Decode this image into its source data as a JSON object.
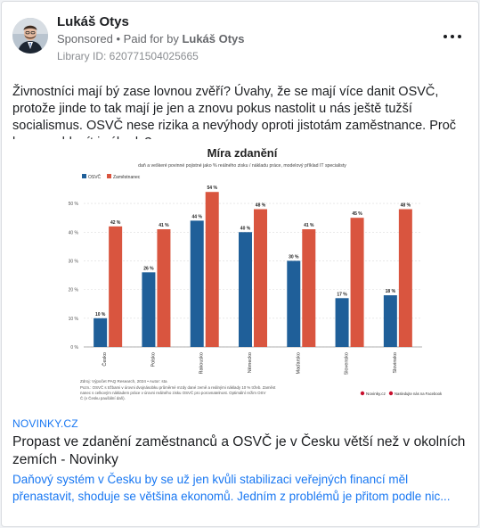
{
  "post": {
    "author_name": "Lukáš Otys",
    "sponsored_label": "Sponsored",
    "separator": " • ",
    "paid_for_prefix": "Paid for by ",
    "paid_for_name": "Lukáš Otys",
    "library_id": "Library ID: 620771504025665",
    "more_icon": "more-horizontal-icon",
    "text": "Živnostníci mají bý zase lovnou zvěří? Úvahy, že se mají více danit OSVČ, protože jinde to tak mají je jen a znovu pokus nastolit u nás ještě tužší socialismus. OSVČ nese rizika a nevýhody oproti jistotám zaměstnance. Proč by nemohl mít i výhody?"
  },
  "link_preview": {
    "domain": "NOVINKY.CZ",
    "headline": "Propast ve zdanění zaměstnanců a OSVČ je v Česku větší než v okolních zemích - Novinky",
    "description_line1": "Daňový systém v Česku by se už jen kvůli stabilizaci veřejných financí měl",
    "description_line2": "přenastavit, shoduje se většina ekonomů. Jedním z problémů je přitom podle nic..."
  },
  "colors": {
    "osvc": "#1f5f99",
    "employee": "#d9553f",
    "link": "#1877f2"
  },
  "chart_data": {
    "type": "bar",
    "title": "Míra zdanění",
    "subtitle": "daň a veškeré povinné pojistné jako % reálného zisku / nákladu práce, modelový příklad IT specialisty",
    "categories": [
      "Česko",
      "Polsko",
      "Rakousko",
      "Německo",
      "Maďarsko",
      "Slovensko",
      "Slovinsko"
    ],
    "series": [
      {
        "name": "OSVČ",
        "values": [
          10,
          26,
          44,
          40,
          30,
          17,
          18
        ]
      },
      {
        "name": "Zaměstnanec",
        "values": [
          42,
          41,
          54,
          48,
          41,
          45,
          48
        ]
      }
    ],
    "value_labels": [
      [
        "10 %",
        "26 %",
        "44 %",
        "40 %",
        "30 %",
        "17 %",
        "18 %"
      ],
      [
        "42 %",
        "41 %",
        "54 %",
        "48 %",
        "41 %",
        "45 %",
        "48 %"
      ]
    ],
    "y_ticks": [
      0,
      10,
      20,
      30,
      40,
      50
    ],
    "y_tick_labels": [
      "0 %",
      "10 %",
      "20 %",
      "30 %",
      "40 %",
      "50 %"
    ],
    "ylim": [
      0,
      55
    ],
    "grid": true,
    "legend_position": "top-left",
    "source": "Zdroj: Výpočet PAQ Research, 2024 • Autor: sta",
    "note": "Pozn.: OSVČ s tržbami v úrovni dvojnásobku průměrné mzdy dané země a reálnými náklady 10 % tržeb. Zaměstnanec s celkovým nákladem práce v úrovni reálného zisku OSVČ pro porovnatelnost. Optimální režim OSVČ (v Česku paušální daň).",
    "footer_brand": "Novinky.cz",
    "footer_extra": "Nasledujte nás na Facebook"
  }
}
